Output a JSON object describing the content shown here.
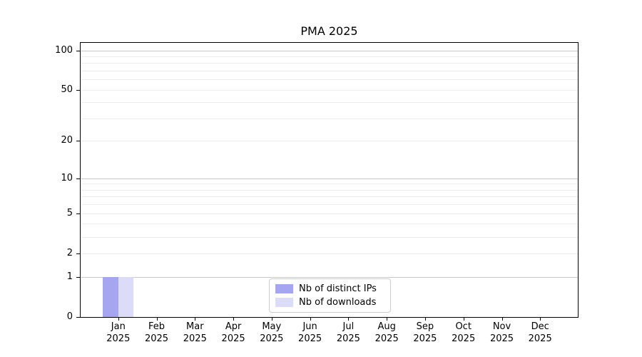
{
  "chart_data": {
    "type": "bar",
    "title": "PMA 2025",
    "categories": [
      "Jan",
      "Feb",
      "Mar",
      "Apr",
      "May",
      "Jun",
      "Jul",
      "Aug",
      "Sep",
      "Oct",
      "Nov",
      "Dec"
    ],
    "x_sublabel": "2025",
    "series": [
      {
        "name": "Nb of distinct IPs",
        "color": "#a5a5f0",
        "values": [
          1,
          0,
          0,
          0,
          0,
          0,
          0,
          0,
          0,
          0,
          0,
          0
        ]
      },
      {
        "name": "Nb of downloads",
        "color": "#dcdcf8",
        "values": [
          1,
          0,
          0,
          0,
          0,
          0,
          0,
          0,
          0,
          0,
          0,
          0
        ]
      }
    ],
    "y_axis": {
      "scale": "log1p",
      "tick_values": [
        0,
        1,
        2,
        5,
        10,
        20,
        50,
        100
      ],
      "major_gridlines": [
        1,
        10,
        100
      ],
      "minor_gridlines": [
        2,
        3,
        4,
        5,
        6,
        7,
        8,
        9,
        20,
        30,
        40,
        50,
        60,
        70,
        80,
        90
      ],
      "ylim": [
        0,
        115
      ]
    },
    "legend": {
      "position": "lower center",
      "entries": [
        "Nb of distinct IPs",
        "Nb of downloads"
      ]
    },
    "grid": true,
    "colors": {
      "axis": "#000000",
      "minor_grid": "#ececec",
      "major_grid": "#c9c9c9",
      "legend_border": "#cccccc"
    }
  }
}
